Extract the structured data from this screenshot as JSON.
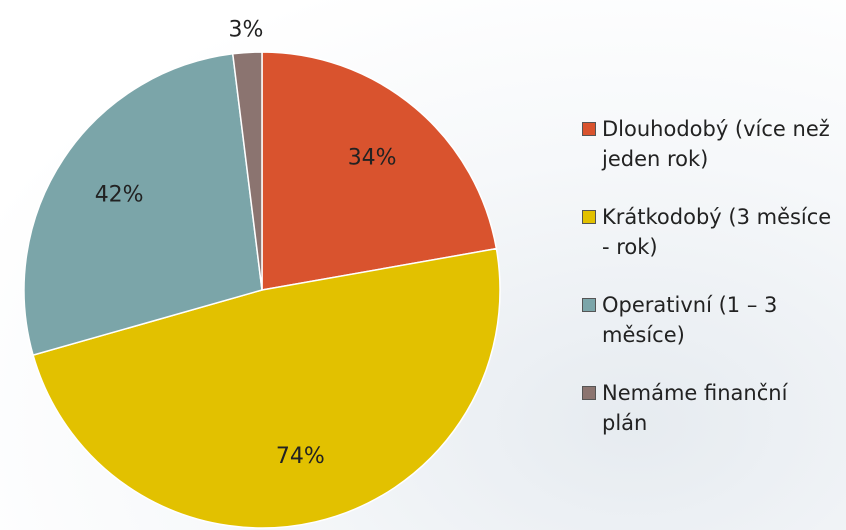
{
  "chart_data": {
    "type": "pie",
    "categories": [
      "Dlouhodobý (více než jeden rok)",
      "Krátkodobý (3 měsíce - rok)",
      "Operativní (1 – 3 měsíce)",
      "Nemáme finanční plán"
    ],
    "values": [
      34,
      74,
      42,
      3
    ],
    "value_labels": [
      "34%",
      "74%",
      "42%",
      "3%"
    ],
    "colors": [
      "#d9532e",
      "#e2c100",
      "#7ba5a9",
      "#8b7470"
    ]
  }
}
